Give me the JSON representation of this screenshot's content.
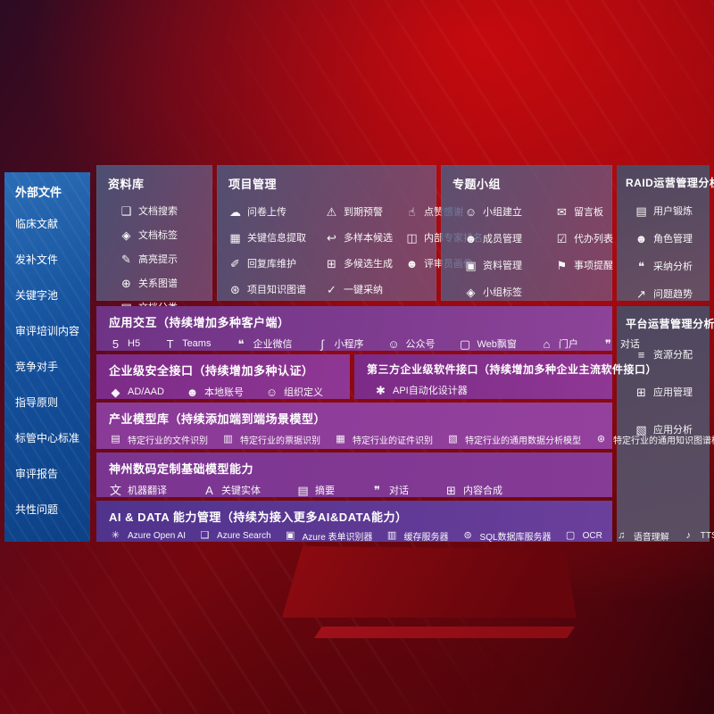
{
  "colors": {
    "background_red": "#8d0811",
    "sidebar_blue": "#15519d",
    "panel_gray": "#6e6486",
    "band_purple": "#8a3a97",
    "band_indigo": "#5b3a92",
    "text": "#ffffff"
  },
  "icon_glyphs": {
    "doc-search-icon": "❑",
    "doc-tag-icon": "◈",
    "highlight-icon": "✎",
    "relation-graph-icon": "⊕",
    "doc-classify-icon": "▤",
    "questionnaire-upload-icon": "☁",
    "due-alert-icon": "⚠",
    "thumbs-up-icon": "☝",
    "key-info-extract-icon": "▦",
    "multi-sample-icon": "↩",
    "expert-ranking-icon": "◫",
    "reply-maintain-icon": "✐",
    "multi-candidate-icon": "⊞",
    "reviewer-profile-icon": "☻",
    "project-knowledge-graph-icon": "⊛",
    "one-click-adopt-icon": "✓",
    "group-create-icon": "☺",
    "message-board-icon": "✉",
    "member-manage-icon": "☻",
    "todo-list-icon": "☑",
    "material-manage-icon": "▣",
    "reminder-icon": "⚑",
    "group-tag-icon": "◈",
    "user-card-icon": "▤",
    "role-manage-icon": "☻",
    "adoption-analysis-icon": "❝",
    "issue-trend-icon": "↗",
    "resource-allocation-icon": "≡",
    "app-manage-icon": "⊞",
    "app-analysis-icon": "▧",
    "h5-icon": "5",
    "teams-icon": "T",
    "wechat-work-icon": "❝",
    "miniprogram-icon": "∫",
    "official-account-icon": "☺",
    "web-popup-icon": "▢",
    "portal-icon": "⌂",
    "dialog-icon": "❞",
    "ad-aad-icon": "◆",
    "local-account-icon": "☻",
    "org-define-icon": "☺",
    "api-designer-icon": "✱",
    "industry-file-recognition-icon": "▤",
    "industry-receipt-recognition-icon": "▥",
    "industry-id-recognition-icon": "▦",
    "industry-data-analysis-icon": "▧",
    "industry-knowledge-graph-icon": "⊛",
    "machine-translation-icon": "文",
    "key-entity-icon": "A",
    "summary-icon": "▤",
    "chat-dialog-icon": "❞",
    "content-compose-icon": "⊞",
    "openai-icon": "✳",
    "azure-search-icon": "❑",
    "form-recognizer-icon": "▣",
    "cache-server-icon": "▥",
    "sql-db-icon": "⊜",
    "ocr-icon": "▢",
    "speech-understanding-icon": "♫",
    "tts-icon": "♪"
  },
  "sidebar": {
    "title": "外部文件",
    "items": [
      {
        "label": "临床文献"
      },
      {
        "label": "发补文件"
      },
      {
        "label": "关键字池"
      },
      {
        "label": "审评培训内容"
      },
      {
        "label": "竞争对手"
      },
      {
        "label": "指导原则"
      },
      {
        "label": "标管中心标准"
      },
      {
        "label": "审评报告"
      },
      {
        "label": "共性问题"
      }
    ]
  },
  "panels": {
    "library": {
      "title": "资料库",
      "items": [
        {
          "icon": "doc-search-icon",
          "label": "文档搜索"
        },
        {
          "icon": "doc-tag-icon",
          "label": "文档标签"
        },
        {
          "icon": "highlight-icon",
          "label": "高亮提示"
        },
        {
          "icon": "relation-graph-icon",
          "label": "关系图谱"
        },
        {
          "icon": "doc-classify-icon",
          "label": "文档分类"
        }
      ]
    },
    "project": {
      "title": "项目管理",
      "items": [
        {
          "icon": "questionnaire-upload-icon",
          "label": "问卷上传"
        },
        {
          "icon": "due-alert-icon",
          "label": "到期预警"
        },
        {
          "icon": "thumbs-up-icon",
          "label": "点赞感谢"
        },
        {
          "icon": "key-info-extract-icon",
          "label": "关键信息提取"
        },
        {
          "icon": "multi-sample-icon",
          "label": "多样本候选"
        },
        {
          "icon": "expert-ranking-icon",
          "label": "内部专家排名"
        },
        {
          "icon": "reply-maintain-icon",
          "label": "回复库维护"
        },
        {
          "icon": "multi-candidate-icon",
          "label": "多候选生成"
        },
        {
          "icon": "reviewer-profile-icon",
          "label": "评审员画像"
        },
        {
          "icon": "project-knowledge-graph-icon",
          "label": "项目知识图谱"
        },
        {
          "icon": "one-click-adopt-icon",
          "label": "一键采纳"
        }
      ]
    },
    "group": {
      "title": "专题小组",
      "items": [
        {
          "icon": "group-create-icon",
          "label": "小组建立"
        },
        {
          "icon": "message-board-icon",
          "label": "留言板"
        },
        {
          "icon": "member-manage-icon",
          "label": "成员管理"
        },
        {
          "icon": "todo-list-icon",
          "label": "代办列表"
        },
        {
          "icon": "material-manage-icon",
          "label": "资料管理"
        },
        {
          "icon": "reminder-icon",
          "label": "事项提醒"
        },
        {
          "icon": "group-tag-icon",
          "label": "小组标签"
        }
      ]
    },
    "raid": {
      "title": "RAID运营管理分析",
      "items": [
        {
          "icon": "user-card-icon",
          "label": "用户锻炼"
        },
        {
          "icon": "role-manage-icon",
          "label": "角色管理"
        },
        {
          "icon": "adoption-analysis-icon",
          "label": "采纳分析"
        },
        {
          "icon": "issue-trend-icon",
          "label": "问题趋势"
        }
      ]
    },
    "platform": {
      "title": "平台运营管理分析",
      "items": [
        {
          "icon": "resource-allocation-icon",
          "label": "资源分配"
        },
        {
          "icon": "app-manage-icon",
          "label": "应用管理"
        },
        {
          "icon": "app-analysis-icon",
          "label": "应用分析"
        }
      ]
    }
  },
  "bands": {
    "interaction": {
      "title": "应用交互（持续增加多种客户端）",
      "items": [
        {
          "icon": "h5-icon",
          "label": "H5"
        },
        {
          "icon": "teams-icon",
          "label": "Teams"
        },
        {
          "icon": "wechat-work-icon",
          "label": "企业微信"
        },
        {
          "icon": "miniprogram-icon",
          "label": "小程序"
        },
        {
          "icon": "official-account-icon",
          "label": "公众号"
        },
        {
          "icon": "web-popup-icon",
          "label": "Web飘窗"
        },
        {
          "icon": "portal-icon",
          "label": "门户"
        },
        {
          "icon": "dialog-icon",
          "label": "对话"
        }
      ]
    },
    "security": {
      "title": "企业级安全接口（持续增加多种认证）",
      "items": [
        {
          "icon": "ad-aad-icon",
          "label": "AD/AAD"
        },
        {
          "icon": "local-account-icon",
          "label": "本地账号"
        },
        {
          "icon": "org-define-icon",
          "label": "组织定义"
        }
      ]
    },
    "thirdparty": {
      "title": "第三方企业级软件接口（持续增加多种企业主流软件接口）",
      "items": [
        {
          "icon": "api-designer-icon",
          "label": "API自动化设计器"
        }
      ]
    },
    "industry_models": {
      "title": "产业模型库（持续添加端到端场景模型）",
      "items": [
        {
          "icon": "industry-file-recognition-icon",
          "label": "特定行业的文件识别"
        },
        {
          "icon": "industry-receipt-recognition-icon",
          "label": "特定行业的票据识别"
        },
        {
          "icon": "industry-id-recognition-icon",
          "label": "特定行业的证件识别"
        },
        {
          "icon": "industry-data-analysis-icon",
          "label": "特定行业的通用数据分析模型"
        },
        {
          "icon": "industry-knowledge-graph-icon",
          "label": "特定行业的通用知识图谱模型"
        }
      ]
    },
    "base_models": {
      "title": "神州数码定制基础模型能力",
      "items": [
        {
          "icon": "machine-translation-icon",
          "label": "机器翻译"
        },
        {
          "icon": "key-entity-icon",
          "label": "关键实体"
        },
        {
          "icon": "summary-icon",
          "label": "摘要"
        },
        {
          "icon": "chat-dialog-icon",
          "label": "对话"
        },
        {
          "icon": "content-compose-icon",
          "label": "内容合成"
        }
      ]
    },
    "ai_data": {
      "title": "AI & DATA 能力管理（持续为接入更多AI&DATA能力）",
      "items": [
        {
          "icon": "openai-icon",
          "label": "Azure Open AI"
        },
        {
          "icon": "azure-search-icon",
          "label": "Azure Search"
        },
        {
          "icon": "form-recognizer-icon",
          "label": "Azure 表单识别器"
        },
        {
          "icon": "cache-server-icon",
          "label": "缓存服务器"
        },
        {
          "icon": "sql-db-icon",
          "label": "SQL数据库服务器"
        },
        {
          "icon": "ocr-icon",
          "label": "OCR"
        },
        {
          "icon": "speech-understanding-icon",
          "label": "语音理解"
        },
        {
          "icon": "tts-icon",
          "label": "TTS"
        }
      ]
    }
  }
}
